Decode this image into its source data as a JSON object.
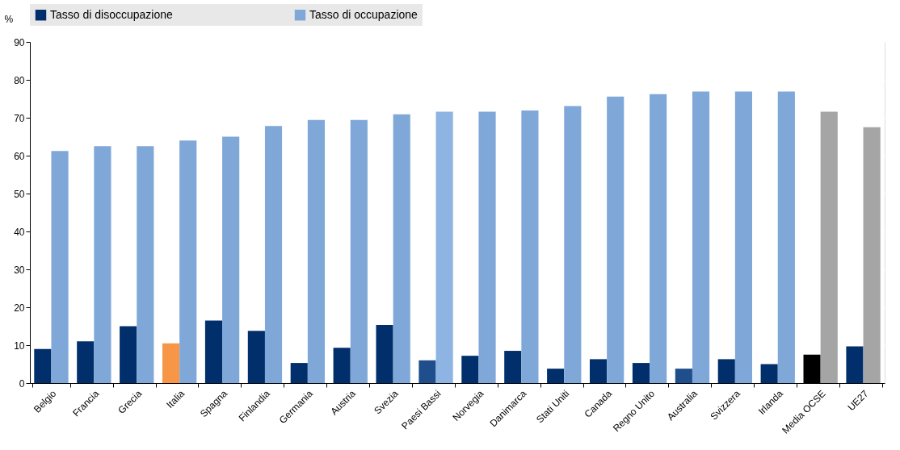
{
  "chart_data": {
    "type": "bar",
    "ylabel": "%",
    "categories": [
      "Belgio",
      "Francia",
      "Grecia",
      "Italia",
      "Spagna",
      "Finlandia",
      "Germania",
      "Austria",
      "Svezia",
      "Paesi Bassi",
      "Norvegia",
      "Danimarca",
      "Stati Uniti",
      "Canada",
      "Regno Unito",
      "Australia",
      "Svizzera",
      "Irlanda",
      "Media OCSE",
      "UE27"
    ],
    "series": [
      {
        "name": "Tasso di disoccupazione",
        "color": "#002f6c",
        "colors": [
          "#002f6c",
          "#002f6c",
          "#002f6c",
          "#f79646",
          "#002f6c",
          "#002f6c",
          "#002f6c",
          "#002f6c",
          "#002f6c",
          "#1f4e8c",
          "#002f6c",
          "#002f6c",
          "#002f6c",
          "#002f6c",
          "#002f6c",
          "#1f4e8c",
          "#002f6c",
          "#002f6c",
          "#000000",
          "#002f6c"
        ],
        "values": [
          9.0,
          11.0,
          15.0,
          10.5,
          16.5,
          13.8,
          5.3,
          9.3,
          15.3,
          6.0,
          7.2,
          8.5,
          3.8,
          6.3,
          5.3,
          3.8,
          6.3,
          5.0,
          7.5,
          9.7
        ]
      },
      {
        "name": "Tasso di occupazione",
        "color": "#7fa8d9",
        "colors": [
          "#7fa8d9",
          "#7fa8d9",
          "#7fa8d9",
          "#7fa8d9",
          "#7fa8d9",
          "#7fa8d9",
          "#7fa8d9",
          "#7fa8d9",
          "#7fa8d9",
          "#8eb4e3",
          "#7fa8d9",
          "#7fa8d9",
          "#7fa8d9",
          "#7fa8d9",
          "#7fa8d9",
          "#7fa8d9",
          "#7fa8d9",
          "#7fa8d9",
          "#a5a5a5",
          "#a5a5a5"
        ],
        "values": [
          61.2,
          62.5,
          62.5,
          64.0,
          65.0,
          67.8,
          69.4,
          69.4,
          70.9,
          71.6,
          71.6,
          71.9,
          73.1,
          75.6,
          76.2,
          76.9,
          76.9,
          76.9,
          71.6,
          67.5
        ]
      }
    ],
    "ylim": [
      0,
      90
    ],
    "yticks": [
      0,
      10,
      20,
      30,
      40,
      50,
      60,
      70,
      80,
      90
    ],
    "grid": true,
    "legend": "top"
  }
}
